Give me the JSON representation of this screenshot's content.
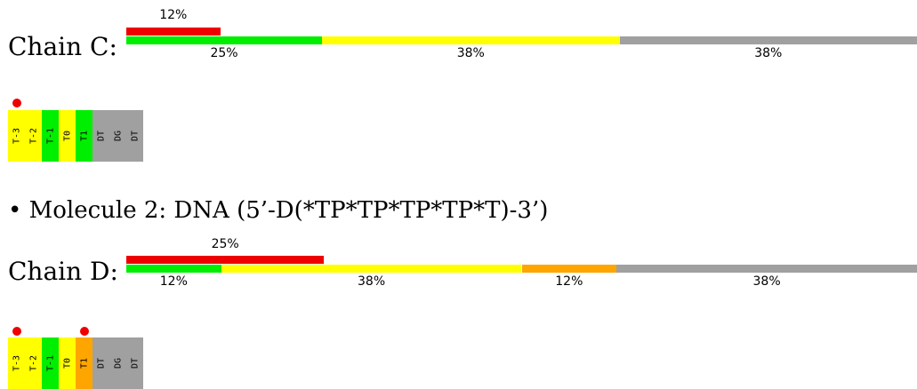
{
  "colors": {
    "red": "#ee0000",
    "green": "#00ee00",
    "yellow": "#ffff00",
    "orange": "#ffa500",
    "grey": "#a0a0a0"
  },
  "chains": [
    {
      "label": "Chain C:",
      "top_bar": {
        "value": 12,
        "label": "12%"
      },
      "segments": [
        {
          "value": 25,
          "label": "25%",
          "color": "green"
        },
        {
          "value": 38,
          "label": "38%",
          "color": "yellow"
        },
        {
          "value": 38,
          "label": "38%",
          "color": "grey"
        }
      ],
      "residues": [
        {
          "label": "T-3",
          "color": "yellow",
          "outlier": true
        },
        {
          "label": "T-2",
          "color": "yellow",
          "outlier": false
        },
        {
          "label": "T-1",
          "color": "green",
          "outlier": false
        },
        {
          "label": "T0",
          "color": "yellow",
          "outlier": false
        },
        {
          "label": "T1",
          "color": "green",
          "outlier": false
        },
        {
          "label": "DT",
          "color": "grey",
          "outlier": false
        },
        {
          "label": "DG",
          "color": "grey",
          "outlier": false
        },
        {
          "label": "DT",
          "color": "grey",
          "outlier": false
        }
      ]
    },
    {
      "label": "Chain D:",
      "top_bar": {
        "value": 25,
        "label": "25%"
      },
      "segments": [
        {
          "value": 12,
          "label": "12%",
          "color": "green"
        },
        {
          "value": 38,
          "label": "38%",
          "color": "yellow"
        },
        {
          "value": 12,
          "label": "12%",
          "color": "orange"
        },
        {
          "value": 38,
          "label": "38%",
          "color": "grey"
        }
      ],
      "residues": [
        {
          "label": "T-3",
          "color": "yellow",
          "outlier": true
        },
        {
          "label": "T-2",
          "color": "yellow",
          "outlier": false
        },
        {
          "label": "T-1",
          "color": "green",
          "outlier": false
        },
        {
          "label": "T0",
          "color": "yellow",
          "outlier": false
        },
        {
          "label": "T1",
          "color": "orange",
          "outlier": true
        },
        {
          "label": "DT",
          "color": "grey",
          "outlier": false
        },
        {
          "label": "DG",
          "color": "grey",
          "outlier": false
        },
        {
          "label": "DT",
          "color": "grey",
          "outlier": false
        }
      ]
    }
  ],
  "molecule_heading": {
    "bullet": "•",
    "text": "Molecule 2: DNA (5’-D(*TP*TP*TP*TP*T)-3’)"
  }
}
